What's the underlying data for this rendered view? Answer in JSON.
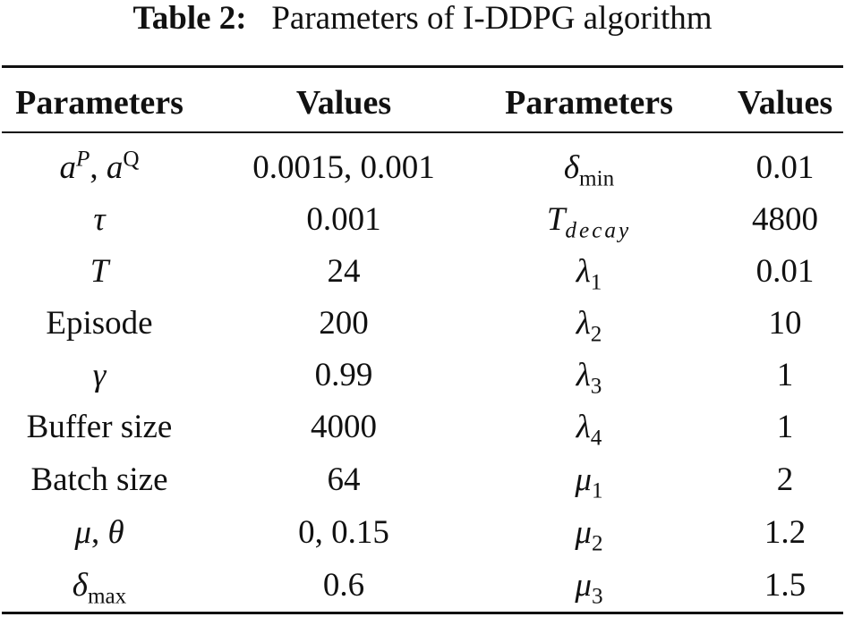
{
  "caption": {
    "label": "Table 2:",
    "text": "Parameters of I-DDPG algorithm"
  },
  "table": {
    "headers": [
      "Parameters",
      "Values",
      "Parameters",
      "Values"
    ],
    "rows": [
      [
        "a^P, a^Q",
        "0.0015, 0.001",
        "δ_min",
        "0.01"
      ],
      [
        "τ",
        "0.001",
        "T_decay",
        "4800"
      ],
      [
        "T",
        "24",
        "λ_1",
        "0.01"
      ],
      [
        "Episode",
        "200",
        "λ_2",
        "10"
      ],
      [
        "γ",
        "0.99",
        "λ_3",
        "1"
      ],
      [
        "Buffer size",
        "4000",
        "λ_4",
        "1"
      ],
      [
        "Batch size",
        "64",
        "μ_1",
        "2"
      ],
      [
        "μ, θ",
        "0, 0.15",
        "μ_2",
        "1.2"
      ],
      [
        "δ_max",
        "0.6",
        "μ_3",
        "1.5"
      ]
    ],
    "symbols": {
      "a": "a",
      "P": "P",
      "Q": "Q",
      "tau": "τ",
      "T": "T",
      "decay": "decay",
      "gamma": "γ",
      "mu": "μ",
      "theta": "θ",
      "delta": "δ",
      "min": "min",
      "max": "max",
      "lambda": "λ",
      "sub1": "1",
      "sub2": "2",
      "sub3": "3",
      "sub4": "4",
      "comma": ", "
    }
  }
}
